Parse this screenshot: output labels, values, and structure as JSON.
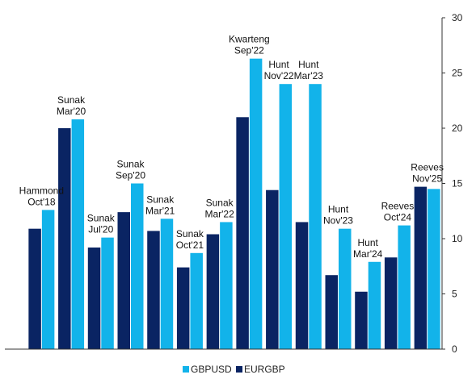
{
  "chart_data": {
    "type": "bar",
    "categories": [
      "Hammond Oct'18",
      "Sunak Mar'20",
      "Sunak Jul'20",
      "Sunak Sep'20",
      "Sunak Mar'21",
      "Sunak Oct'21",
      "Sunak Mar'22",
      "Kwarteng Sep'22",
      "Hunt Nov'22",
      "Hunt Mar'23",
      "Hunt Nov'23",
      "Hunt Mar'24",
      "Reeves Oct'24",
      "Reeves Nov'25"
    ],
    "annotations": [
      [
        "Hammond",
        "Oct'18"
      ],
      [
        "Sunak",
        "Mar'20"
      ],
      [
        "Sunak",
        "Jul'20"
      ],
      [
        "Sunak",
        "Sep'20"
      ],
      [
        "Sunak",
        "Mar'21"
      ],
      [
        "Sunak",
        "Oct'21"
      ],
      [
        "Sunak",
        "Mar'22"
      ],
      [
        "Kwarteng",
        "Sep'22"
      ],
      [
        "Hunt",
        "Nov'22"
      ],
      [
        "Hunt",
        "Mar'23"
      ],
      [
        "Hunt",
        "Nov'23"
      ],
      [
        "Hunt",
        "Mar'24"
      ],
      [
        "Reeves",
        "Oct'24"
      ],
      [
        "Reeves",
        "Nov'25"
      ]
    ],
    "series": [
      {
        "name": "EURGBP",
        "color": "#0a2463",
        "values": [
          10.9,
          20.0,
          9.2,
          12.4,
          10.7,
          7.4,
          10.4,
          21.0,
          14.4,
          11.5,
          6.7,
          5.2,
          8.3,
          14.7
        ]
      },
      {
        "name": "GBPUSD",
        "color": "#12b3ea",
        "values": [
          12.6,
          20.8,
          10.1,
          15.0,
          11.8,
          8.7,
          11.5,
          26.3,
          24.0,
          24.0,
          10.9,
          7.9,
          11.2,
          14.5
        ]
      }
    ],
    "y_axis": {
      "position": "right",
      "ylim": [
        0,
        30
      ],
      "ticks": [
        0,
        5,
        10,
        15,
        20,
        25,
        30
      ],
      "tick_labels": [
        "0",
        "5",
        "10",
        "15",
        "20",
        "25",
        "30"
      ]
    },
    "legend": {
      "placement": "bottom-center",
      "entries": [
        {
          "name": "GBPUSD",
          "color": "#12b3ea"
        },
        {
          "name": "EURGBP",
          "color": "#0a2463"
        }
      ]
    },
    "grid": false,
    "title": "",
    "xlabel": "",
    "ylabel": ""
  }
}
